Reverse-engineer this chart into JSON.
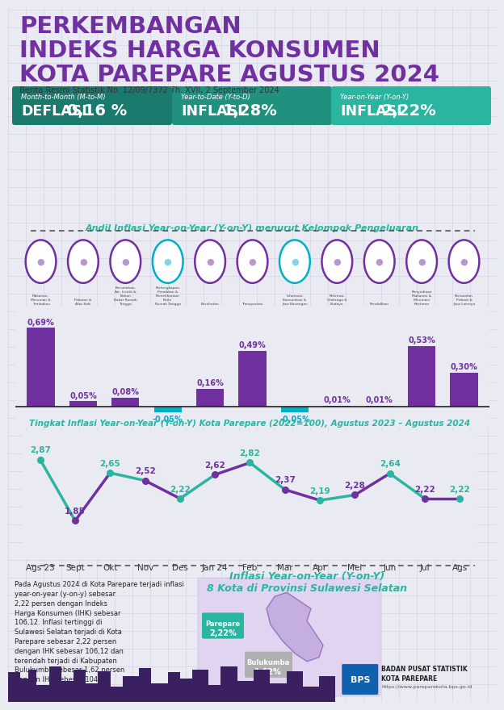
{
  "title_line1": "PERKEMBANGAN",
  "title_line2": "INDEKS HARGA KONSUMEN",
  "title_line3": "KOTA PAREPARE AGUSTUS 2024",
  "subtitle": "Berita Resmi Statistik No. 12/09/7372 Th. XVII, 2 September 2024",
  "bg_color": "#eaebf2",
  "grid_color": "#d0d0e0",
  "title_color": "#7030a0",
  "box1_label": "Month-to-Month (M-to-M)",
  "box1_value1": "DEFLASI",
  "box1_value2": "0,16 %",
  "box1_color": "#1a7a6e",
  "box2_label": "Year-to-Date (Y-to-D)",
  "box2_value1": "INFLASI",
  "box2_value2": "1,28%",
  "box2_color": "#20907f",
  "box3_label": "Year-on-Year (Y-on-Y)",
  "box3_value1": "INFLASI",
  "box3_value2": "2,22%",
  "box3_color": "#2ab5a0",
  "bar_chart_title": "Andil Inflasi Year-on-Year (Y-on-Y) menurut Kelompok Pengeluaran",
  "bar_categories": [
    "Makanan,\nMinuman &\nTembakau",
    "Pakaian &\nAlas Kaki",
    "Perumahan,\nAir, Listrik &\nBahan\nBakar Rumah\nTangga",
    "Perlengkapan,\nPeralatan &\nPemeliharaan\nRutin\nRumah Tangga",
    "Kesehatan",
    "Transportasi",
    "Informasi,\nKomunikasi &\nJasa Keuangan",
    "Rekreasi,\nOlahraga &\nBudaya",
    "Pendidikan",
    "Penyediaan\nMakanan &\nMinuman/\nRestoran",
    "Perawatan\nPribadi &\nJasa Lainnya"
  ],
  "bar_values": [
    0.69,
    0.05,
    0.08,
    -0.05,
    0.16,
    0.49,
    -0.05,
    0.01,
    0.01,
    0.53,
    0.3
  ],
  "bar_color_pos": "#7030a0",
  "bar_color_neg": "#00b0c8",
  "line_chart_title": "Tingkat Inflasi Year-on-Year (Y-on-Y) Kota Parepare (2022=100), Agustus 2023 – Agustus 2024",
  "line_months": [
    "Ags 23",
    "Sept",
    "Okt",
    "Nov",
    "Des",
    "Jan 24",
    "Feb",
    "Mar",
    "Apr",
    "Mei",
    "Jun",
    "Jul",
    "Ags"
  ],
  "line_values": [
    2.87,
    1.85,
    2.65,
    2.52,
    2.22,
    2.62,
    2.82,
    2.37,
    2.19,
    2.28,
    2.64,
    2.22,
    2.22
  ],
  "line_color_teal": "#2ab5a0",
  "line_color_purple": "#7030a0",
  "bottom_section_title": "Inflasi Year-on-Year (Y-on-Y)\n8 Kota di Provinsi Sulawesi Selatan",
  "bottom_text": "Pada Agustus 2024 di Kota Parepare terjadi inflasi\nyear-on-year (y-on-y) sebesar\n2,22 persen dengan Indeks\nHarga Konsumen (IHK) sebesar\n106,12. Inflasi tertinggi di\nSulawesi Selatan terjadi di Kota\nParepare sebesar 2,22 persen\ndengan IHK sebesar 106,12 dan\nterendah terjadi di Kabupaten\nBulukumba sebesar 1,62 persen\ndengan IHK sebesar 104,93.",
  "parepare_label": "Parepare",
  "parepare_value": "2,22%",
  "parepare_box_color": "#2ab5a0",
  "bulukumba_label": "Bulukumba",
  "bulukumba_value": "1,62%",
  "bulukumba_box_color": "#b0b0b0",
  "footer_org": "BADAN PUSAT STATISTIK",
  "footer_city": "KOTA PAREPARE",
  "footer_url": "https://www.pareparekota.bps.go.id",
  "teal_color": "#2ab5a0",
  "purple_color": "#7030a0"
}
